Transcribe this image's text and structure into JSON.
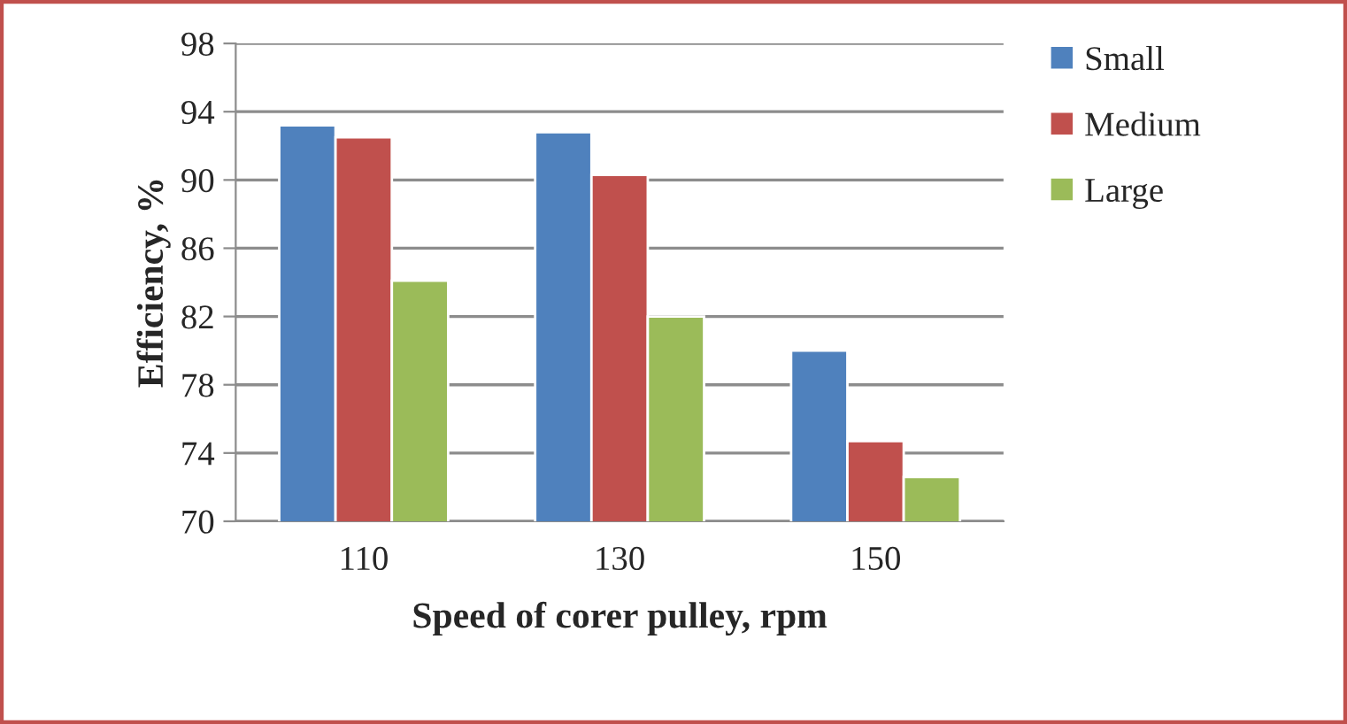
{
  "chart_data": {
    "type": "bar",
    "xlabel": "Speed of corer pulley, rpm",
    "ylabel": "Efficiency, %",
    "categories": [
      "110",
      "130",
      "150"
    ],
    "series": [
      {
        "name": "Small",
        "color": "#4f81bd",
        "values": [
          93.2,
          92.8,
          80.0
        ]
      },
      {
        "name": "Medium",
        "color": "#c0504d",
        "values": [
          92.5,
          90.3,
          74.7
        ]
      },
      {
        "name": "Large",
        "color": "#9bbb59",
        "values": [
          84.1,
          82.0,
          72.6
        ]
      }
    ],
    "ylim": [
      70,
      98
    ],
    "yticks": [
      70,
      74,
      78,
      82,
      86,
      90,
      94,
      98
    ],
    "grid": "y",
    "legend": "top right"
  }
}
